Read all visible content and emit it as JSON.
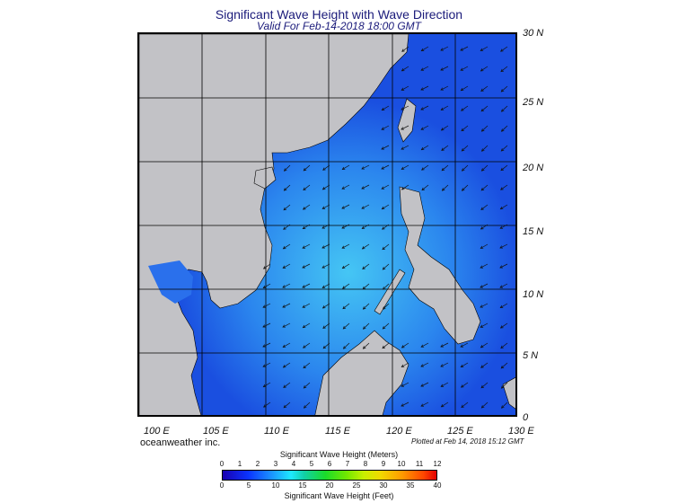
{
  "title": "Significant Wave Height with Wave Direction",
  "subtitle": "Valid For Feb-14-2018 18:00 GMT",
  "lat_labels": [
    "30 N",
    "25 N",
    "20 N",
    "15 N",
    "10 N",
    "5 N",
    "0"
  ],
  "lon_labels": [
    "100 E",
    "105 E",
    "110 E",
    "115 E",
    "120 E",
    "125 E",
    "130 E"
  ],
  "credit": "oceanweather inc.",
  "plotted": "Plotted at Feb 14, 2018 15:12 GMT",
  "colorbar": {
    "meters_title": "Significant Wave Height (Meters)",
    "feet_title": "Significant Wave Height (Feet)",
    "meters_ticks": [
      "0",
      "1",
      "2",
      "3",
      "4",
      "5",
      "6",
      "7",
      "8",
      "9",
      "10",
      "11",
      "12"
    ],
    "feet_ticks": [
      "0",
      "5",
      "10",
      "15",
      "20",
      "25",
      "30",
      "35",
      "40"
    ]
  },
  "colors": {
    "land": "#c0c0c0",
    "sea_low": "#1a3ad8",
    "sea_mid": "#2a7cf0",
    "sea_high": "#3fb8f5"
  }
}
